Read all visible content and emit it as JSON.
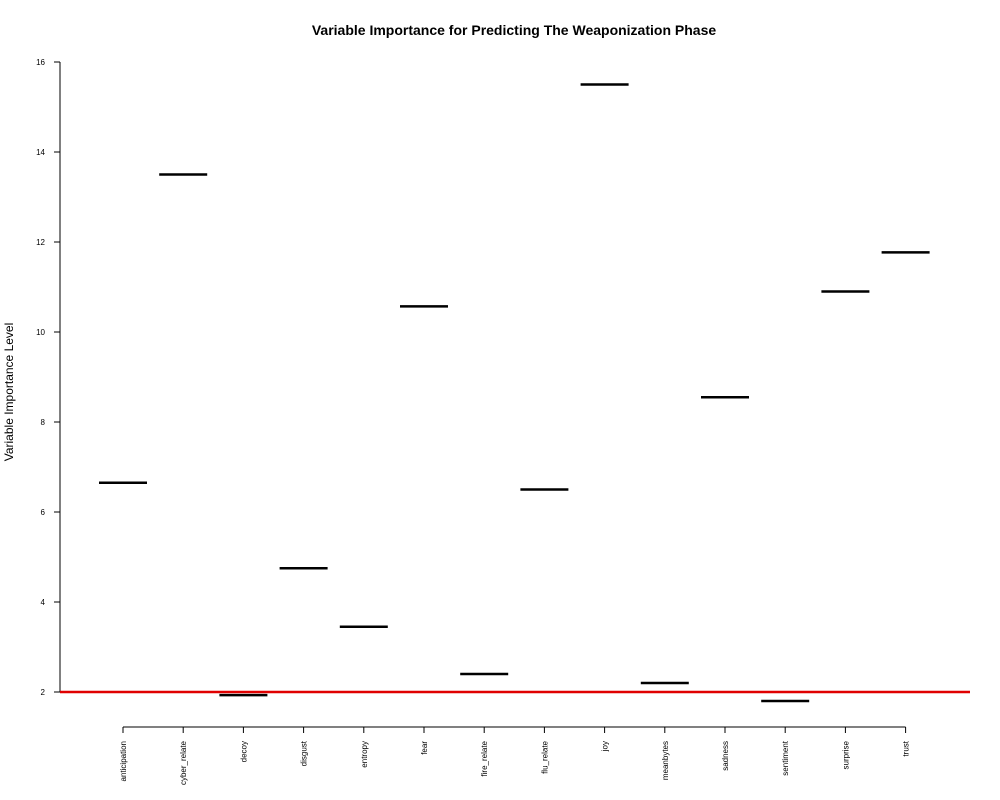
{
  "chart_data": {
    "type": "scatter",
    "title": "Variable Importance for Predicting The Weaponization Phase",
    "xlabel": "",
    "ylabel": "Variable Importance Level",
    "categories": [
      "anticipation",
      "cyber_relate",
      "decoy",
      "disgust",
      "entropy",
      "fear",
      "fire_relate",
      "flu_relate",
      "joy",
      "meanbytes",
      "sadness",
      "sentiment",
      "surprise",
      "trust"
    ],
    "values": [
      6.65,
      13.5,
      1.93,
      4.75,
      3.45,
      10.57,
      2.4,
      6.5,
      15.5,
      2.2,
      8.55,
      1.8,
      10.9,
      11.77
    ],
    "ylim": [
      2,
      16
    ],
    "yticks": [
      2,
      4,
      6,
      8,
      10,
      12,
      14,
      16
    ],
    "reference_line": {
      "y": 2,
      "color": "#e00000"
    },
    "grid": false,
    "legend": "none"
  }
}
